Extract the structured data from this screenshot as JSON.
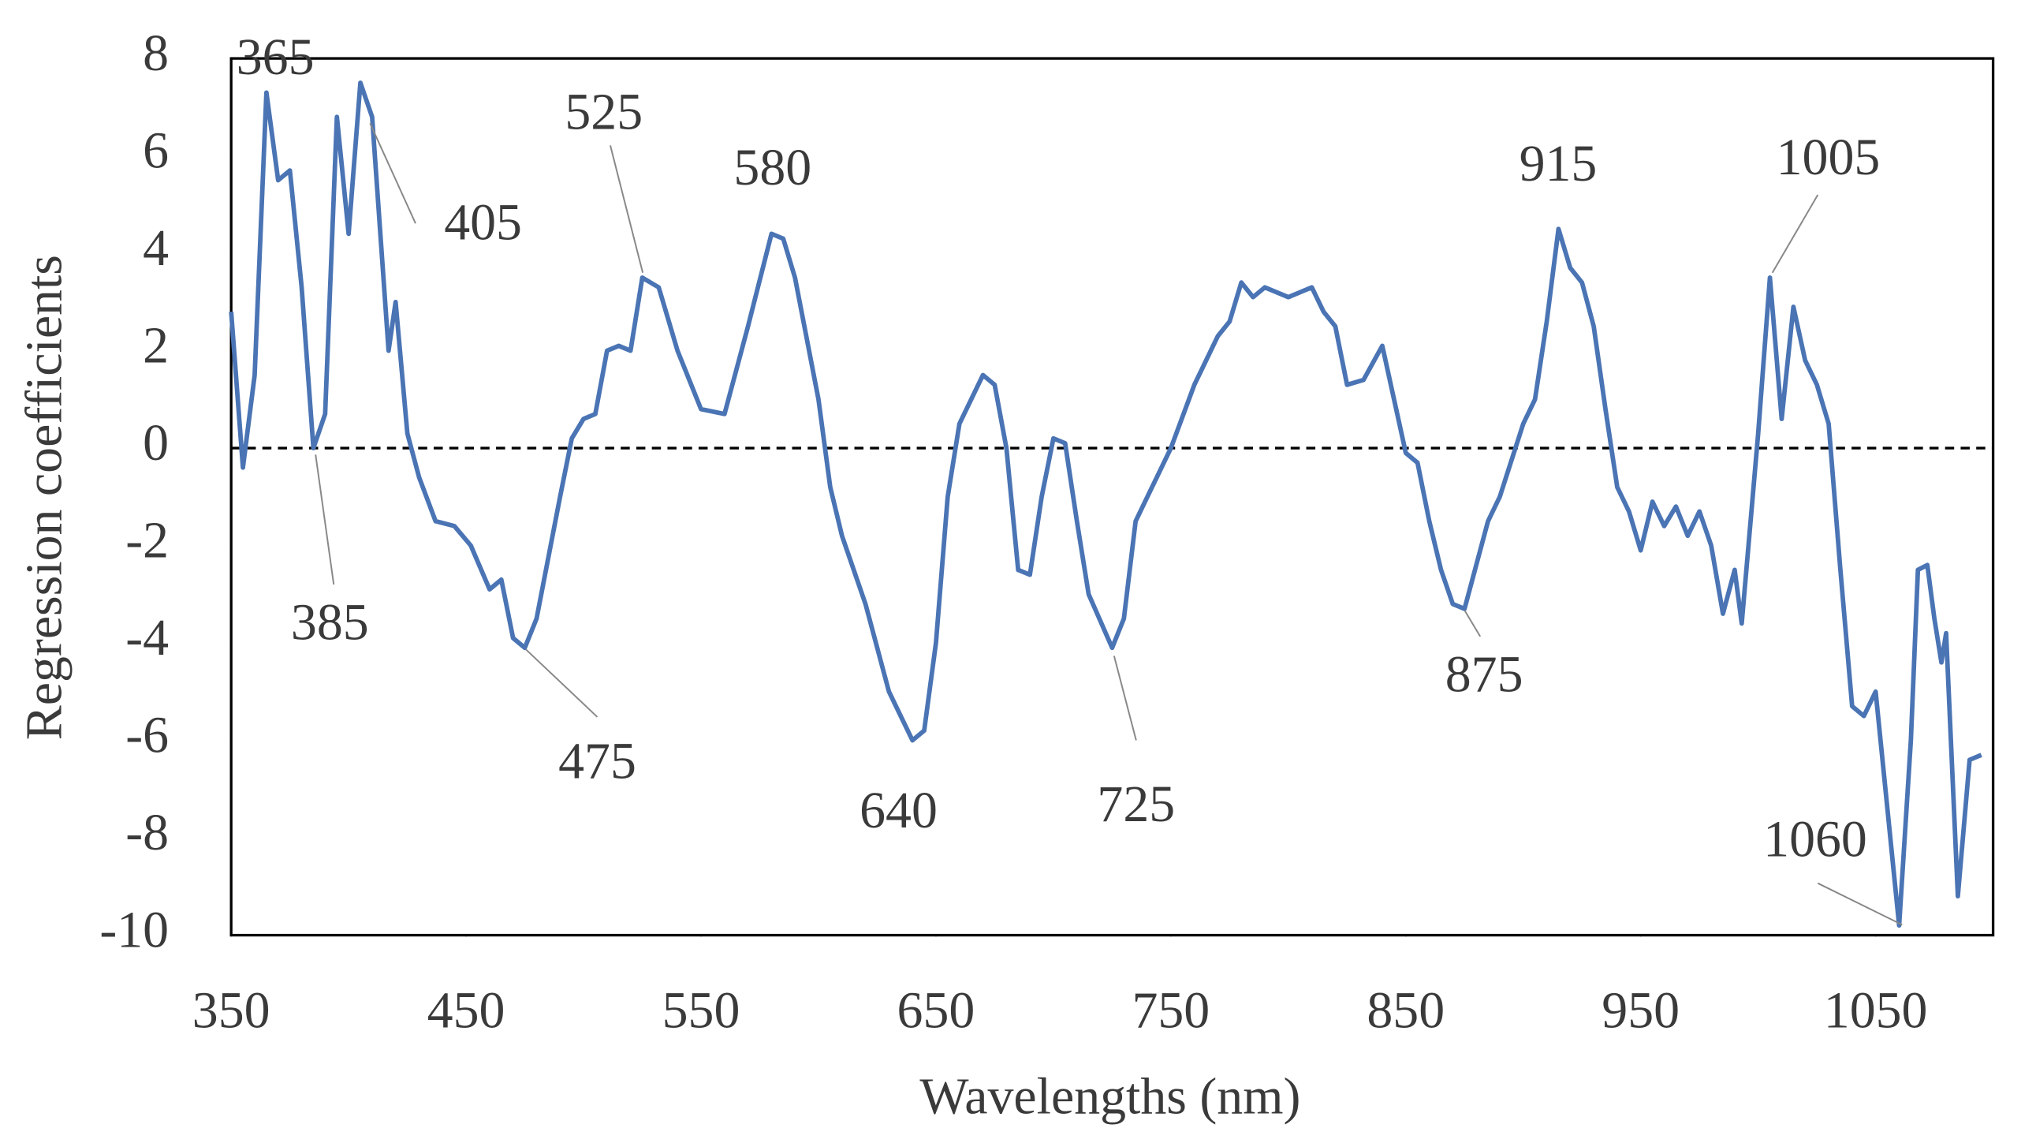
{
  "chart_data": {
    "type": "line",
    "x_label": "Wavelengths (nm)",
    "y_label": "Regression coefficients",
    "xlim": [
      350,
      1100
    ],
    "xticks": [
      350,
      450,
      550,
      650,
      750,
      850,
      950,
      1050
    ],
    "ylim": [
      -10,
      8
    ],
    "yticks": [
      -10,
      -8,
      -6,
      -4,
      -2,
      0,
      2,
      4,
      6,
      8
    ],
    "reference_line": 0,
    "x": [
      350,
      355,
      360,
      365,
      370,
      375,
      380,
      385,
      390,
      395,
      400,
      405,
      410,
      417,
      420,
      425,
      430,
      437,
      445,
      452,
      460,
      465,
      470,
      475,
      480,
      490,
      495,
      500,
      505,
      510,
      515,
      520,
      525,
      532,
      540,
      550,
      560,
      570,
      580,
      585,
      590,
      600,
      605,
      610,
      620,
      630,
      640,
      645,
      650,
      655,
      660,
      670,
      675,
      680,
      685,
      690,
      695,
      700,
      705,
      710,
      715,
      725,
      730,
      735,
      745,
      750,
      760,
      770,
      775,
      780,
      785,
      790,
      800,
      810,
      815,
      820,
      825,
      832,
      840,
      845,
      850,
      855,
      860,
      865,
      870,
      875,
      880,
      885,
      890,
      900,
      905,
      910,
      915,
      920,
      925,
      930,
      935,
      940,
      945,
      950,
      955,
      960,
      965,
      970,
      975,
      980,
      985,
      990,
      993,
      1000,
      1005,
      1010,
      1015,
      1020,
      1025,
      1030,
      1035,
      1040,
      1045,
      1050,
      1060,
      1065,
      1068,
      1072,
      1075,
      1078,
      1080,
      1085,
      1090,
      1095
    ],
    "series": [
      {
        "name": "Regression coefficients",
        "color": "#4a74b4",
        "values": [
          2.8,
          -0.4,
          1.5,
          7.3,
          5.5,
          5.7,
          3.3,
          0,
          0.7,
          6.8,
          4.4,
          7.5,
          6.8,
          2.0,
          3.0,
          0.3,
          -0.6,
          -1.5,
          -1.6,
          -2.0,
          -2.9,
          -2.7,
          -3.9,
          -4.1,
          -3.5,
          -1.0,
          0.2,
          0.6,
          0.7,
          2.0,
          2.1,
          2.0,
          3.5,
          3.3,
          2.0,
          0.8,
          0.7,
          2.5,
          4.4,
          4.3,
          3.5,
          1.0,
          -0.8,
          -1.8,
          -3.2,
          -5.0,
          -6.0,
          -5.8,
          -4.0,
          -1.0,
          0.5,
          1.5,
          1.3,
          0.0,
          -2.5,
          -2.6,
          -1.0,
          0.2,
          0.1,
          -1.5,
          -3.0,
          -4.1,
          -3.5,
          -1.5,
          -0.5,
          0.0,
          1.3,
          2.3,
          2.6,
          3.4,
          3.1,
          3.3,
          3.1,
          3.3,
          2.8,
          2.5,
          1.3,
          1.4,
          2.1,
          1.0,
          -0.1,
          -0.3,
          -1.5,
          -2.5,
          -3.2,
          -3.3,
          -2.4,
          -1.5,
          -1.0,
          0.5,
          1.0,
          2.6,
          4.5,
          3.7,
          3.4,
          2.5,
          0.8,
          -0.8,
          -1.3,
          -2.1,
          -1.1,
          -1.6,
          -1.2,
          -1.8,
          -1.3,
          -2.0,
          -3.4,
          -2.5,
          -3.6,
          0.3,
          3.5,
          0.6,
          2.9,
          1.8,
          1.3,
          0.5,
          -2.5,
          -5.3,
          -5.5,
          -5.0,
          -9.8,
          -6.0,
          -2.5,
          -2.4,
          -3.5,
          -4.4,
          -3.8,
          -9.2,
          -6.4,
          -6.3
        ]
      }
    ],
    "annotations": [
      "365",
      "405",
      "385",
      "475",
      "525",
      "580",
      "640",
      "725",
      "915",
      "875",
      "1005",
      "1060"
    ]
  }
}
